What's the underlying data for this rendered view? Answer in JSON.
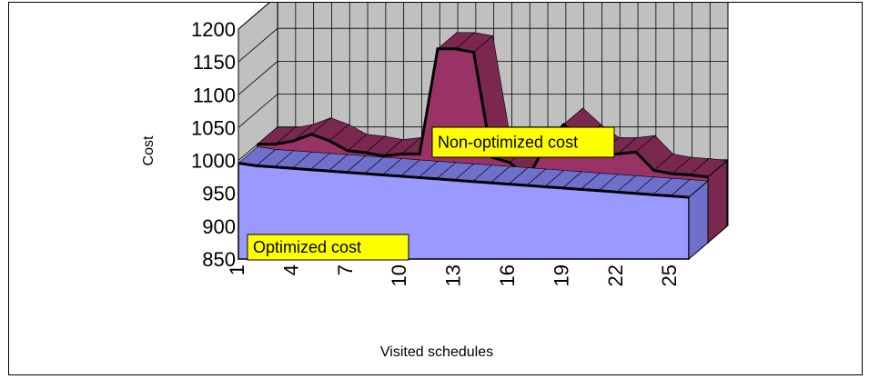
{
  "chart_data": {
    "type": "area",
    "xlabel": "Visited schedules",
    "ylabel": "Cost",
    "ylim": [
      850,
      1200
    ],
    "y_ticks": [
      850,
      900,
      950,
      1000,
      1050,
      1100,
      1150,
      1200
    ],
    "x": [
      1,
      2,
      3,
      4,
      5,
      6,
      7,
      8,
      9,
      10,
      11,
      12,
      13,
      14,
      15,
      16,
      17,
      18,
      19,
      20,
      21,
      22,
      23,
      24,
      25,
      26
    ],
    "x_tick_labels": [
      "1",
      "4",
      "7",
      "10",
      "13",
      "16",
      "19",
      "22",
      "25"
    ],
    "grid": true,
    "series": [
      {
        "name": "Optimized cost",
        "color": "#9999ff",
        "values": [
          996,
          992,
          990,
          988,
          986,
          984,
          982,
          980,
          978,
          976,
          974,
          972,
          970,
          968,
          966,
          964,
          962,
          960,
          958,
          956,
          954,
          952,
          950,
          948,
          946,
          944
        ]
      },
      {
        "name": "Non-optimized cost",
        "color": "#993366",
        "values": [
          1000,
          1000,
          1005,
          1015,
          1005,
          990,
          987,
          982,
          985,
          985,
          1145,
          1145,
          1140,
          980,
          972,
          948,
          1000,
          1030,
          1005,
          985,
          985,
          988,
          960,
          955,
          953,
          950
        ]
      }
    ],
    "annotations": [
      {
        "text": "Non-optimized cost",
        "background": "#ffff00"
      },
      {
        "text": "Optimized cost",
        "background": "#ffff00"
      }
    ]
  }
}
